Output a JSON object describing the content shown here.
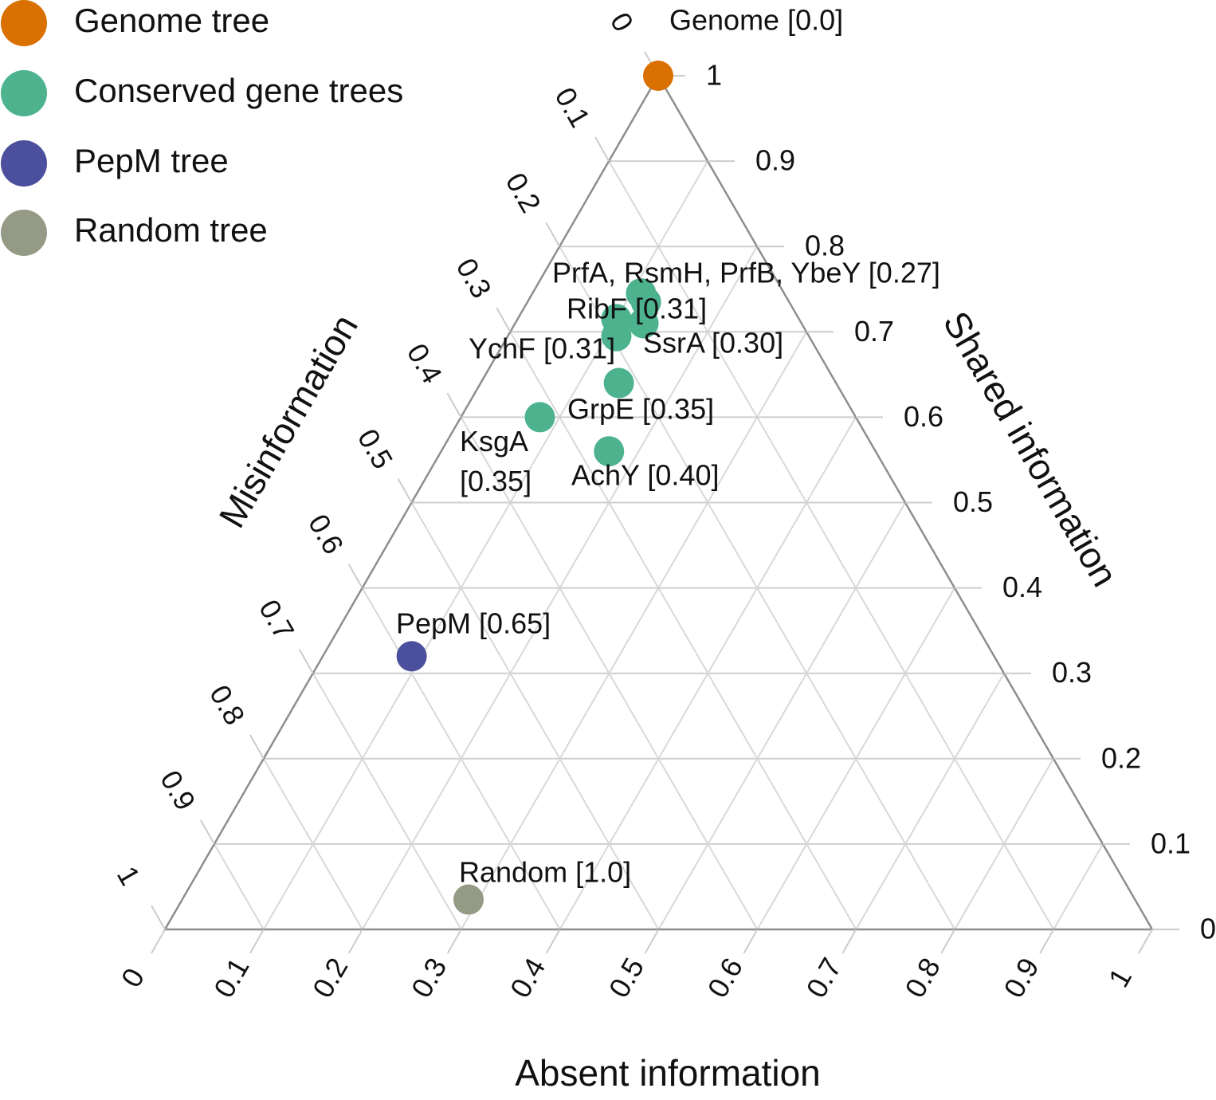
{
  "chart_data": {
    "type": "scatter",
    "subtype": "ternary",
    "title": "",
    "axes": {
      "shared": {
        "label": "Shared information",
        "ticks": [
          "0",
          "0.1",
          "0.2",
          "0.3",
          "0.4",
          "0.5",
          "0.6",
          "0.7",
          "0.8",
          "0.9",
          "1"
        ]
      },
      "misinformation": {
        "label": "Misinformation",
        "ticks": [
          "0",
          "0.1",
          "0.2",
          "0.3",
          "0.4",
          "0.5",
          "0.6",
          "0.7",
          "0.8",
          "0.9",
          "1"
        ]
      },
      "absent": {
        "label": "Absent information",
        "ticks": [
          "0",
          "0.1",
          "0.2",
          "0.3",
          "0.4",
          "0.5",
          "0.6",
          "0.7",
          "0.8",
          "0.9",
          "1"
        ]
      },
      "range": [
        0,
        1
      ],
      "grid": true
    },
    "legend": {
      "placement": "top-left",
      "entries": [
        {
          "label": "Genome tree",
          "color": "#d97000"
        },
        {
          "label": "Conserved gene trees",
          "color": "#4db38e"
        },
        {
          "label": "PepM tree",
          "color": "#4b4f9e"
        },
        {
          "label": "Random tree",
          "color": "#949a86"
        }
      ]
    },
    "series": [
      {
        "name": "Genome tree",
        "color": "#d97000",
        "points": [
          {
            "shared": 1.0,
            "absent": 0.0,
            "label": "Genome [0.0]"
          }
        ]
      },
      {
        "name": "Conserved gene trees",
        "color": "#4db38e",
        "points": [
          {
            "shared": 0.745,
            "absent": 0.11,
            "label": "PrfA, RsmH, PrfB, YbeY [0.27]"
          },
          {
            "shared": 0.735,
            "absent": 0.12,
            "label": ""
          },
          {
            "shared": 0.715,
            "absent": 0.1,
            "label": "RibF [0.31]"
          },
          {
            "shared": 0.71,
            "absent": 0.13,
            "label": "SsrA [0.30]"
          },
          {
            "shared": 0.695,
            "absent": 0.11,
            "label": "YchF [0.31]"
          },
          {
            "shared": 0.64,
            "absent": 0.14,
            "label": "GrpE [0.35]"
          },
          {
            "shared": 0.6,
            "absent": 0.08,
            "label": "KsgA [0.35]"
          },
          {
            "shared": 0.56,
            "absent": 0.17,
            "label": "AchY [0.40]"
          }
        ]
      },
      {
        "name": "PepM tree",
        "color": "#4b4f9e",
        "points": [
          {
            "shared": 0.32,
            "absent": 0.09,
            "label": "PepM [0.65]"
          }
        ]
      },
      {
        "name": "Random tree",
        "color": "#949a86",
        "points": [
          {
            "shared": 0.035,
            "absent": 0.29,
            "label": "Random [1.0]"
          }
        ]
      }
    ]
  }
}
